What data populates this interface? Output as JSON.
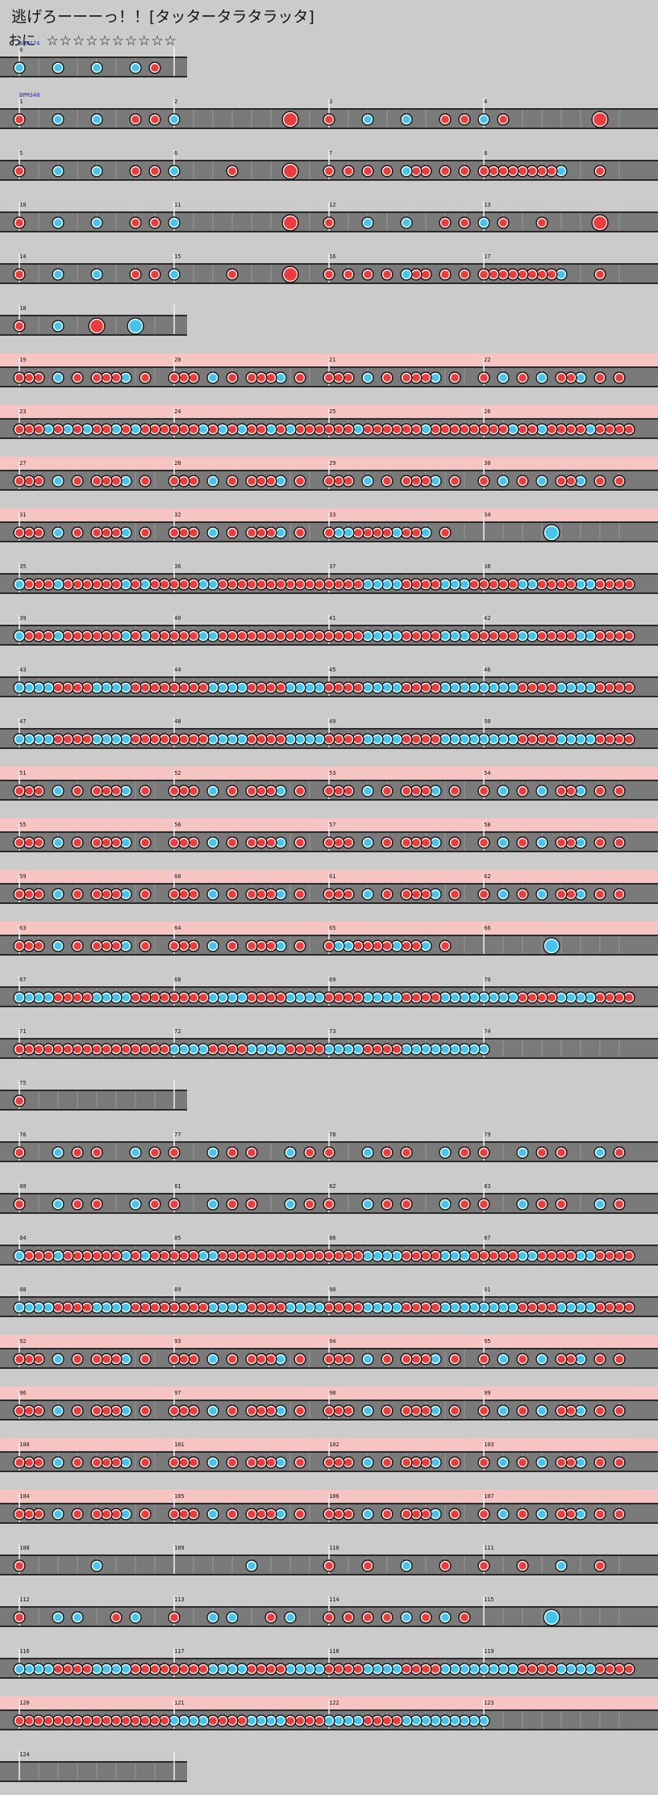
{
  "title": "逃げろーーーっ！！[タッタータラタラッタ]",
  "difficulty": {
    "course": "おに",
    "stars": "☆☆☆☆☆☆☆☆☆☆"
  },
  "bpm_markers": [
    {
      "label": "BPM174",
      "row": 0
    },
    {
      "label": "BPM348",
      "row": 1
    }
  ],
  "colors": {
    "don": "#ec3c3c",
    "ka": "#45c4ee",
    "gogo": "#f7c4c4",
    "lane": "#7a7a7a"
  },
  "rows": [
    {
      "s": 0,
      "n": 1,
      "sub": 16,
      "g": 0,
      "notes": [
        [
          0,
          0,
          "k"
        ],
        [
          0,
          4,
          "k"
        ],
        [
          0,
          8,
          "k"
        ],
        [
          0,
          12,
          "k"
        ],
        [
          0,
          14,
          "d"
        ]
      ]
    },
    {
      "s": 1,
      "n": 4,
      "sub": 16,
      "g": 0,
      "notes": [
        [
          0,
          0,
          "d"
        ],
        [
          0,
          4,
          "k"
        ],
        [
          0,
          8,
          "k"
        ],
        [
          0,
          12,
          "d"
        ],
        [
          0,
          14,
          "d"
        ],
        [
          1,
          0,
          "k"
        ],
        [
          1,
          12,
          "D"
        ],
        [
          2,
          0,
          "d"
        ],
        [
          2,
          4,
          "k"
        ],
        [
          2,
          8,
          "k"
        ],
        [
          2,
          12,
          "d"
        ],
        [
          2,
          14,
          "d"
        ],
        [
          3,
          0,
          "k"
        ],
        [
          3,
          2,
          "d"
        ],
        [
          3,
          12,
          "D"
        ]
      ]
    },
    {
      "s": 5,
      "n": 4,
      "sub": 16,
      "g": 0,
      "notes": [
        [
          0,
          0,
          "d"
        ],
        [
          0,
          4,
          "k"
        ],
        [
          0,
          8,
          "k"
        ],
        [
          0,
          12,
          "d"
        ],
        [
          0,
          14,
          "d"
        ],
        [
          1,
          0,
          "k"
        ],
        [
          1,
          6,
          "d"
        ],
        [
          1,
          12,
          "D"
        ],
        [
          2,
          0,
          "d"
        ],
        [
          2,
          2,
          "d"
        ],
        [
          2,
          4,
          "d"
        ],
        [
          2,
          6,
          "d"
        ],
        [
          2,
          8,
          "k"
        ],
        [
          2,
          9,
          "d"
        ],
        [
          2,
          10,
          "d"
        ],
        [
          2,
          12,
          "d"
        ],
        [
          2,
          14,
          "d"
        ],
        [
          3,
          0,
          "d"
        ],
        [
          3,
          1,
          "d"
        ],
        [
          3,
          2,
          "d"
        ],
        [
          3,
          3,
          "d"
        ],
        [
          3,
          4,
          "d"
        ],
        [
          3,
          5,
          "d"
        ],
        [
          3,
          6,
          "d"
        ],
        [
          3,
          7,
          "d"
        ],
        [
          3,
          8,
          "k"
        ],
        [
          3,
          12,
          "d"
        ]
      ]
    },
    {
      "s": 10,
      "n": 4,
      "sub": 16,
      "g": 0,
      "notes": [
        [
          0,
          0,
          "d"
        ],
        [
          0,
          4,
          "k"
        ],
        [
          0,
          8,
          "k"
        ],
        [
          0,
          12,
          "d"
        ],
        [
          0,
          14,
          "d"
        ],
        [
          1,
          0,
          "k"
        ],
        [
          1,
          12,
          "D"
        ],
        [
          2,
          0,
          "d"
        ],
        [
          2,
          4,
          "k"
        ],
        [
          2,
          8,
          "k"
        ],
        [
          2,
          12,
          "d"
        ],
        [
          2,
          14,
          "d"
        ],
        [
          3,
          0,
          "k"
        ],
        [
          3,
          2,
          "d"
        ],
        [
          3,
          6,
          "d"
        ],
        [
          3,
          12,
          "D"
        ]
      ]
    },
    {
      "s": 14,
      "n": 4,
      "sub": 16,
      "g": 0,
      "notes": [
        [
          0,
          0,
          "d"
        ],
        [
          0,
          4,
          "k"
        ],
        [
          0,
          8,
          "k"
        ],
        [
          0,
          12,
          "d"
        ],
        [
          0,
          14,
          "d"
        ],
        [
          1,
          0,
          "k"
        ],
        [
          1,
          6,
          "d"
        ],
        [
          1,
          12,
          "D"
        ],
        [
          2,
          0,
          "d"
        ],
        [
          2,
          2,
          "d"
        ],
        [
          2,
          4,
          "d"
        ],
        [
          2,
          6,
          "d"
        ],
        [
          2,
          8,
          "k"
        ],
        [
          2,
          9,
          "d"
        ],
        [
          2,
          10,
          "d"
        ],
        [
          2,
          12,
          "d"
        ],
        [
          2,
          14,
          "d"
        ],
        [
          3,
          0,
          "d"
        ],
        [
          3,
          1,
          "d"
        ],
        [
          3,
          2,
          "d"
        ],
        [
          3,
          3,
          "d"
        ],
        [
          3,
          4,
          "d"
        ],
        [
          3,
          5,
          "d"
        ],
        [
          3,
          6,
          "d"
        ],
        [
          3,
          7,
          "d"
        ],
        [
          3,
          8,
          "k"
        ],
        [
          3,
          12,
          "d"
        ]
      ]
    },
    {
      "s": 18,
      "n": 1,
      "sub": 16,
      "g": 0,
      "notes": [
        [
          0,
          0,
          "d"
        ],
        [
          0,
          4,
          "k"
        ],
        [
          0,
          8,
          "D"
        ],
        [
          0,
          12,
          "K"
        ]
      ]
    },
    {
      "s": 19,
      "n": 4,
      "sub": 16,
      "g": 1,
      "pat": "A"
    },
    {
      "s": 23,
      "n": 4,
      "sub": 16,
      "g": 1,
      "pat": "B"
    },
    {
      "s": 27,
      "n": 4,
      "sub": 16,
      "g": 1,
      "pat": "A"
    },
    {
      "s": 31,
      "n": 4,
      "sub": 16,
      "g": 1,
      "pat": "A3",
      "notes": [
        [
          3,
          7,
          "K"
        ]
      ]
    },
    {
      "s": 35,
      "n": 4,
      "sub": 16,
      "g": 0,
      "pat": "C"
    },
    {
      "s": 39,
      "n": 4,
      "sub": 16,
      "g": 0,
      "pat": "C"
    },
    {
      "s": 43,
      "n": 4,
      "sub": 16,
      "g": 0,
      "pat": "E"
    },
    {
      "s": 47,
      "n": 4,
      "sub": 16,
      "g": 0,
      "pat": "E"
    },
    {
      "s": 51,
      "n": 4,
      "sub": 16,
      "g": 1,
      "pat": "A"
    },
    {
      "s": 55,
      "n": 4,
      "sub": 16,
      "g": 1,
      "pat": "A"
    },
    {
      "s": 59,
      "n": 4,
      "sub": 16,
      "g": 1,
      "pat": "A"
    },
    {
      "s": 63,
      "n": 4,
      "sub": 16,
      "g": 1,
      "pat": "A3",
      "notes": [
        [
          3,
          7,
          "K"
        ]
      ]
    },
    {
      "s": 67,
      "n": 4,
      "sub": 16,
      "g": 0,
      "pat": "E"
    },
    {
      "s": 71,
      "n": 4,
      "sub": 16,
      "g": 0,
      "pat": "E3"
    },
    {
      "s": 75,
      "n": 1,
      "sub": 16,
      "g": 0,
      "notes": [
        [
          0,
          0,
          "d"
        ]
      ]
    },
    {
      "s": 76,
      "n": 4,
      "sub": 16,
      "g": 0,
      "pat": "F"
    },
    {
      "s": 80,
      "n": 4,
      "sub": 16,
      "g": 0,
      "pat": "F"
    },
    {
      "s": 84,
      "n": 4,
      "sub": 16,
      "g": 0,
      "pat": "C"
    },
    {
      "s": 88,
      "n": 4,
      "sub": 16,
      "g": 0,
      "pat": "E"
    },
    {
      "s": 92,
      "n": 4,
      "sub": 16,
      "g": 1,
      "pat": "A"
    },
    {
      "s": 96,
      "n": 4,
      "sub": 16,
      "g": 1,
      "pat": "A"
    },
    {
      "s": 100,
      "n": 4,
      "sub": 16,
      "g": 1,
      "pat": "A"
    },
    {
      "s": 104,
      "n": 4,
      "sub": 16,
      "g": 1,
      "pat": "A"
    },
    {
      "s": 108,
      "n": 4,
      "sub": 16,
      "g": 0,
      "notes": [
        [
          0,
          0,
          "d"
        ],
        [
          0,
          8,
          "k"
        ],
        [
          1,
          8,
          "k"
        ],
        [
          2,
          0,
          "d"
        ],
        [
          2,
          4,
          "d"
        ],
        [
          2,
          8,
          "k"
        ],
        [
          2,
          12,
          "d"
        ],
        [
          3,
          0,
          "d"
        ],
        [
          3,
          4,
          "d"
        ],
        [
          3,
          8,
          "k"
        ],
        [
          3,
          12,
          "d"
        ]
      ]
    },
    {
      "s": 112,
      "n": 4,
      "sub": 16,
      "g": 0,
      "notes": [
        [
          0,
          0,
          "d"
        ],
        [
          0,
          4,
          "k"
        ],
        [
          0,
          6,
          "k"
        ],
        [
          0,
          10,
          "d"
        ],
        [
          0,
          12,
          "k"
        ],
        [
          1,
          0,
          "d"
        ],
        [
          1,
          4,
          "k"
        ],
        [
          1,
          6,
          "k"
        ],
        [
          1,
          10,
          "d"
        ],
        [
          1,
          12,
          "k"
        ],
        [
          2,
          0,
          "d"
        ],
        [
          2,
          2,
          "d"
        ],
        [
          2,
          4,
          "d"
        ],
        [
          2,
          6,
          "d"
        ],
        [
          2,
          8,
          "k"
        ],
        [
          2,
          10,
          "d"
        ],
        [
          2,
          12,
          "k"
        ],
        [
          2,
          14,
          "d"
        ],
        [
          3,
          7,
          "K"
        ]
      ]
    },
    {
      "s": 116,
      "n": 4,
      "sub": 16,
      "g": 0,
      "pat": "E"
    },
    {
      "s": 120,
      "n": 4,
      "sub": 16,
      "g": 1,
      "pat": "E3"
    },
    {
      "s": 124,
      "n": 1,
      "sub": 16,
      "g": 0,
      "notes": []
    }
  ],
  "patterns": {
    "A": [
      "ddd_k_d_dddk_d__",
      "ddd_k_d_dddk_d__",
      "ddd_k_d_dddk_d__",
      "d_k_d_k_ddk_d_d_"
    ],
    "A3": [
      "ddd_k_d_dddk_d__",
      "ddd_k_d_dddk_d__",
      "dkkddddkddk_d___",
      "________________"
    ],
    "B": [
      "dddkdkdkddkdkddd",
      "dddkdkdkddkdkddd",
      "dddkddddddkddddd",
      "dddkddkddddkdddd"
    ],
    "C": [
      "kdddkddddddkdkdd",
      "dddkkddddddddddd",
      "ddddkkkkddddkkkd",
      "ddddkkddddkkdddd"
    ],
    "E": [
      "kkkkddddkkkkdddd",
      "ddddkkkkddddkkkk",
      "ddddkkkkddddkkkk",
      "kkkkddddkkkkdddd"
    ],
    "E3": [
      "dddddddddddddddd",
      "kkkkddddkkkkdddd",
      "kkkkddddkkkkkkkk",
      "k_______________"
    ],
    "F": [
      "d___k_d_d___k_d_",
      "d___k_d_d___k_d_",
      "d___k_d_d___k_d_",
      "d___k_d_d___k_d_"
    ]
  }
}
